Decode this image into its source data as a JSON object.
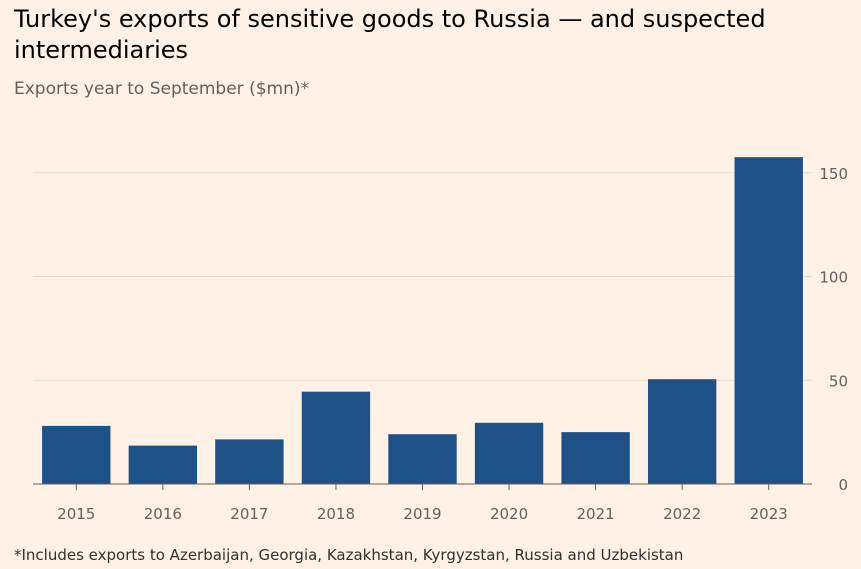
{
  "title": "Turkey's exports of sensitive goods to Russia — and suspected intermediaries",
  "subtitle": "Exports year to September ($mn)*",
  "footnote": "*Includes exports to Azerbaijan, Georgia, Kazakhstan, Kyrgyzstan, Russia and Uzbekistan",
  "colors": {
    "bar": "#1f5189",
    "gridline": "#e6d9ce",
    "axis": "#66605c"
  },
  "chart_data": {
    "type": "bar",
    "title": "Turkey's exports of sensitive goods to Russia — and suspected intermediaries",
    "subtitle": "Exports year to September ($mn)*",
    "xlabel": "",
    "ylabel": "",
    "categories": [
      "2015",
      "2016",
      "2017",
      "2018",
      "2019",
      "2020",
      "2021",
      "2022",
      "2023"
    ],
    "values": [
      28,
      18.5,
      21.5,
      44.5,
      24,
      29.5,
      25,
      50.5,
      157.5
    ],
    "ylim": [
      0,
      160
    ],
    "yticks": [
      0,
      50,
      100,
      150
    ],
    "ytick_labels": [
      "0",
      "50",
      "100",
      "150"
    ],
    "y_axis_side": "right",
    "grid": true
  }
}
